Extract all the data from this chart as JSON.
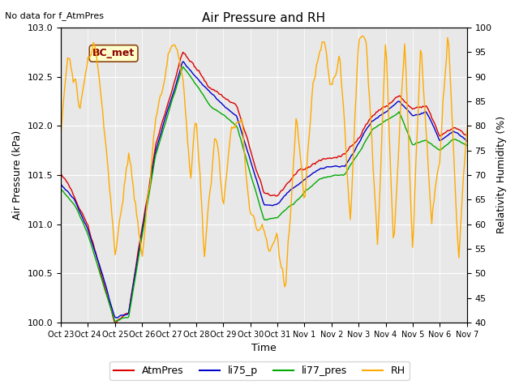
{
  "title": "Air Pressure and RH",
  "subtitle": "No data for f_AtmPres",
  "station_label": "BC_met",
  "xlabel": "Time",
  "ylabel_left": "Air Pressure (kPa)",
  "ylabel_right": "Relativity Humidity (%)",
  "ylim_left": [
    100.0,
    103.0
  ],
  "ylim_right": [
    40,
    100
  ],
  "yticks_left": [
    100.0,
    100.5,
    101.0,
    101.5,
    102.0,
    102.5,
    103.0
  ],
  "yticks_right": [
    40,
    45,
    50,
    55,
    60,
    65,
    70,
    75,
    80,
    85,
    90,
    95,
    100
  ],
  "xtick_labels": [
    "Oct 23",
    "Oct 24",
    "Oct 25",
    "Oct 26",
    "Oct 27",
    "Oct 28",
    "Oct 29",
    "Oct 30",
    "Oct 31",
    "Nov 1",
    "Nov 2",
    "Nov 3",
    "Nov 4",
    "Nov 5",
    "Nov 6",
    "Nov 7"
  ],
  "colors": {
    "AtmPres": "#dd0000",
    "li75_p": "#0000cc",
    "li77_pres": "#00aa00",
    "RH": "#ffaa00",
    "background": "#e8e8e8",
    "grid": "#ffffff"
  },
  "legend_entries": [
    "AtmPres",
    "li75_p",
    "li77_pres",
    "RH"
  ]
}
